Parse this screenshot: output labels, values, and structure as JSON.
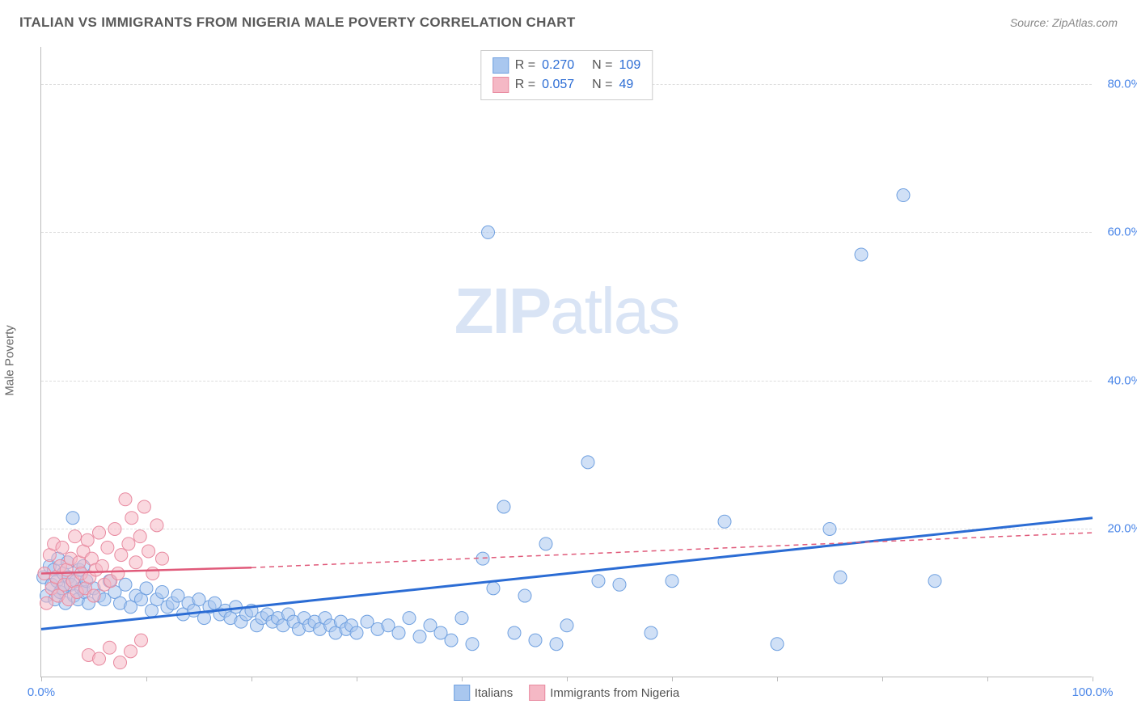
{
  "title": "ITALIAN VS IMMIGRANTS FROM NIGERIA MALE POVERTY CORRELATION CHART",
  "source": "Source: ZipAtlas.com",
  "ylabel": "Male Poverty",
  "watermark_bold": "ZIP",
  "watermark_light": "atlas",
  "chart": {
    "type": "scatter",
    "xlim": [
      0,
      100
    ],
    "ylim": [
      0,
      85
    ],
    "ytick_values": [
      20,
      40,
      60,
      80
    ],
    "ytick_labels": [
      "20.0%",
      "40.0%",
      "60.0%",
      "80.0%"
    ],
    "xtick_values": [
      0,
      10,
      20,
      30,
      40,
      50,
      60,
      70,
      80,
      90,
      100
    ],
    "xtick_labels_shown": {
      "0": "0.0%",
      "100": "100.0%"
    },
    "grid_color": "#dddddd",
    "axis_color": "#bbbbbb",
    "background_color": "#ffffff",
    "series": [
      {
        "key": "italians",
        "label": "Italians",
        "fill_color": "#a9c7ef",
        "stroke_color": "#6fa0e0",
        "fill_opacity": 0.55,
        "marker_radius": 8,
        "trend_color": "#2b6cd4",
        "trend_width": 3,
        "trend_style": "solid",
        "trend_from": [
          0,
          6.5
        ],
        "trend_to": [
          100,
          21.5
        ],
        "R": "0.270",
        "N": "109",
        "points": [
          [
            0.2,
            13.5
          ],
          [
            0.5,
            11
          ],
          [
            0.8,
            15
          ],
          [
            1,
            12.5
          ],
          [
            1.2,
            14.5
          ],
          [
            1.3,
            10.5
          ],
          [
            1.5,
            13
          ],
          [
            1.6,
            16
          ],
          [
            1.8,
            11.5
          ],
          [
            2,
            12
          ],
          [
            2.1,
            14
          ],
          [
            2.3,
            10
          ],
          [
            2.5,
            15.5
          ],
          [
            2.6,
            13.5
          ],
          [
            2.8,
            12.5
          ],
          [
            3,
            21.5
          ],
          [
            3.1,
            11
          ],
          [
            3.3,
            13
          ],
          [
            3.5,
            10.5
          ],
          [
            3.6,
            14.5
          ],
          [
            3.8,
            12
          ],
          [
            4,
            15
          ],
          [
            4.1,
            11.5
          ],
          [
            4.3,
            13
          ],
          [
            4.5,
            10
          ],
          [
            5,
            12
          ],
          [
            5.5,
            11
          ],
          [
            6,
            10.5
          ],
          [
            6.5,
            13
          ],
          [
            7,
            11.5
          ],
          [
            7.5,
            10
          ],
          [
            8,
            12.5
          ],
          [
            8.5,
            9.5
          ],
          [
            9,
            11
          ],
          [
            9.5,
            10.5
          ],
          [
            10,
            12
          ],
          [
            10.5,
            9
          ],
          [
            11,
            10.5
          ],
          [
            11.5,
            11.5
          ],
          [
            12,
            9.5
          ],
          [
            12.5,
            10
          ],
          [
            13,
            11
          ],
          [
            13.5,
            8.5
          ],
          [
            14,
            10
          ],
          [
            14.5,
            9
          ],
          [
            15,
            10.5
          ],
          [
            15.5,
            8
          ],
          [
            16,
            9.5
          ],
          [
            16.5,
            10
          ],
          [
            17,
            8.5
          ],
          [
            17.5,
            9
          ],
          [
            18,
            8
          ],
          [
            18.5,
            9.5
          ],
          [
            19,
            7.5
          ],
          [
            19.5,
            8.5
          ],
          [
            20,
            9
          ],
          [
            20.5,
            7
          ],
          [
            21,
            8
          ],
          [
            21.5,
            8.5
          ],
          [
            22,
            7.5
          ],
          [
            22.5,
            8
          ],
          [
            23,
            7
          ],
          [
            23.5,
            8.5
          ],
          [
            24,
            7.5
          ],
          [
            24.5,
            6.5
          ],
          [
            25,
            8
          ],
          [
            25.5,
            7
          ],
          [
            26,
            7.5
          ],
          [
            26.5,
            6.5
          ],
          [
            27,
            8
          ],
          [
            27.5,
            7
          ],
          [
            28,
            6
          ],
          [
            28.5,
            7.5
          ],
          [
            29,
            6.5
          ],
          [
            29.5,
            7
          ],
          [
            30,
            6
          ],
          [
            31,
            7.5
          ],
          [
            32,
            6.5
          ],
          [
            33,
            7
          ],
          [
            34,
            6
          ],
          [
            35,
            8
          ],
          [
            36,
            5.5
          ],
          [
            37,
            7
          ],
          [
            38,
            6
          ],
          [
            39,
            5
          ],
          [
            40,
            8
          ],
          [
            41,
            4.5
          ],
          [
            42,
            16
          ],
          [
            42.5,
            60
          ],
          [
            43,
            12
          ],
          [
            44,
            23
          ],
          [
            45,
            6
          ],
          [
            46,
            11
          ],
          [
            47,
            5
          ],
          [
            48,
            18
          ],
          [
            49,
            4.5
          ],
          [
            50,
            7
          ],
          [
            52,
            29
          ],
          [
            53,
            13
          ],
          [
            55,
            12.5
          ],
          [
            58,
            6
          ],
          [
            60,
            13
          ],
          [
            65,
            21
          ],
          [
            70,
            4.5
          ],
          [
            75,
            20
          ],
          [
            76,
            13.5
          ],
          [
            78,
            57
          ],
          [
            82,
            65
          ],
          [
            85,
            13
          ]
        ]
      },
      {
        "key": "nigeria",
        "label": "Immigrants from Nigeria",
        "fill_color": "#f5b8c5",
        "stroke_color": "#e88aa0",
        "fill_opacity": 0.55,
        "marker_radius": 8,
        "trend_color": "#e05a7a",
        "trend_width": 2.5,
        "trend_style": "solid",
        "trend_from": [
          0,
          14
        ],
        "trend_to": [
          20,
          14.8
        ],
        "trend_dash_from": [
          20,
          14.8
        ],
        "trend_dash_to": [
          100,
          19.5
        ],
        "R": "0.057",
        "N": "49",
        "points": [
          [
            0.3,
            14
          ],
          [
            0.5,
            10
          ],
          [
            0.8,
            16.5
          ],
          [
            1,
            12
          ],
          [
            1.2,
            18
          ],
          [
            1.4,
            13.5
          ],
          [
            1.6,
            11
          ],
          [
            1.8,
            15
          ],
          [
            2,
            17.5
          ],
          [
            2.2,
            12.5
          ],
          [
            2.4,
            14.5
          ],
          [
            2.6,
            10.5
          ],
          [
            2.8,
            16
          ],
          [
            3,
            13
          ],
          [
            3.2,
            19
          ],
          [
            3.4,
            11.5
          ],
          [
            3.6,
            15.5
          ],
          [
            3.8,
            14
          ],
          [
            4,
            17
          ],
          [
            4.2,
            12
          ],
          [
            4.4,
            18.5
          ],
          [
            4.6,
            13.5
          ],
          [
            4.8,
            16
          ],
          [
            5,
            11
          ],
          [
            5.2,
            14.5
          ],
          [
            5.5,
            19.5
          ],
          [
            5.8,
            15
          ],
          [
            6,
            12.5
          ],
          [
            6.3,
            17.5
          ],
          [
            6.6,
            13
          ],
          [
            7,
            20
          ],
          [
            7.3,
            14
          ],
          [
            7.6,
            16.5
          ],
          [
            8,
            24
          ],
          [
            8.3,
            18
          ],
          [
            8.6,
            21.5
          ],
          [
            9,
            15.5
          ],
          [
            9.4,
            19
          ],
          [
            9.8,
            23
          ],
          [
            10.2,
            17
          ],
          [
            10.6,
            14
          ],
          [
            11,
            20.5
          ],
          [
            11.5,
            16
          ],
          [
            4.5,
            3
          ],
          [
            5.5,
            2.5
          ],
          [
            6.5,
            4
          ],
          [
            7.5,
            2
          ],
          [
            8.5,
            3.5
          ],
          [
            9.5,
            5
          ]
        ]
      }
    ]
  },
  "legend_top": {
    "rows": [
      {
        "swatch_fill": "#a9c7ef",
        "swatch_border": "#6fa0e0",
        "R_label": "R =",
        "R": "0.270",
        "N_label": "N =",
        "N": "109"
      },
      {
        "swatch_fill": "#f5b8c5",
        "swatch_border": "#e88aa0",
        "R_label": "R =",
        "R": "0.057",
        "N_label": "N =",
        "N": "49"
      }
    ]
  },
  "legend_bottom": {
    "items": [
      {
        "swatch_fill": "#a9c7ef",
        "swatch_border": "#6fa0e0",
        "label": "Italians"
      },
      {
        "swatch_fill": "#f5b8c5",
        "swatch_border": "#e88aa0",
        "label": "Immigrants from Nigeria"
      }
    ]
  }
}
